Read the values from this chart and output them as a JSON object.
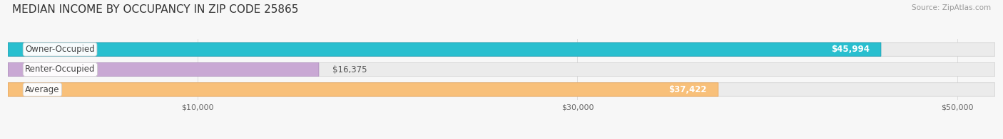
{
  "title": "MEDIAN INCOME BY OCCUPANCY IN ZIP CODE 25865",
  "source": "Source: ZipAtlas.com",
  "categories": [
    "Owner-Occupied",
    "Renter-Occupied",
    "Average"
  ],
  "values": [
    45994,
    16375,
    37422
  ],
  "labels": [
    "$45,994",
    "$16,375",
    "$37,422"
  ],
  "bar_colors": [
    "#29bfcf",
    "#c9a8d4",
    "#f8c07a"
  ],
  "bar_edge_colors": [
    "#1a9ab0",
    "#a888b8",
    "#e8a050"
  ],
  "xmax": 52000,
  "xlim_left": 0,
  "xticks": [
    10000,
    30000,
    50000
  ],
  "xtick_labels": [
    "$10,000",
    "$30,000",
    "$50,000"
  ],
  "background_color": "#f7f7f7",
  "bar_bg_color": "#e8e8e8",
  "label_inside_threshold": 25000,
  "label_inside_color": "white",
  "label_outside_color": "#555555",
  "category_label_color": "#444444",
  "title_color": "#333333",
  "source_color": "#999999",
  "grid_color": "#dddddd",
  "title_fontsize": 11,
  "bar_label_fontsize": 8.5,
  "cat_label_fontsize": 8.5,
  "xtick_fontsize": 8
}
